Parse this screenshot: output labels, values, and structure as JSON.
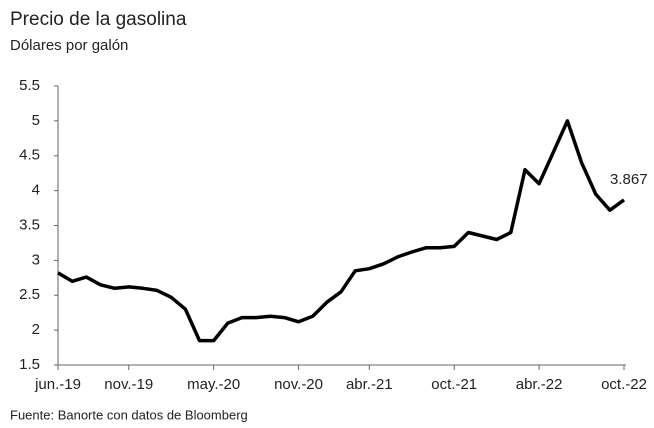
{
  "chart_data": {
    "type": "line",
    "title": "Precio de la gasolina",
    "subtitle": "Dólares por galón",
    "source": "Fuente: Banorte con datos de Bloomberg",
    "categories": [
      "jun.-19",
      null,
      null,
      null,
      null,
      "nov.-19",
      null,
      null,
      null,
      null,
      null,
      "may.-20",
      null,
      null,
      null,
      null,
      null,
      "nov.-20",
      null,
      null,
      null,
      null,
      "abr.-21",
      null,
      null,
      null,
      null,
      null,
      "oct.-21",
      null,
      null,
      null,
      null,
      null,
      "abr.-22",
      null,
      null,
      null,
      null,
      null,
      "oct.-22"
    ],
    "values": [
      2.82,
      2.7,
      2.76,
      2.65,
      2.6,
      2.62,
      2.6,
      2.57,
      2.47,
      2.3,
      1.85,
      1.85,
      2.1,
      2.18,
      2.18,
      2.2,
      2.18,
      2.12,
      2.2,
      2.4,
      2.55,
      2.85,
      2.88,
      2.95,
      3.05,
      3.12,
      3.18,
      3.18,
      3.2,
      3.4,
      3.35,
      3.3,
      3.4,
      4.3,
      4.1,
      4.55,
      5.0,
      4.4,
      3.95,
      3.72,
      3.867
    ],
    "color": "#000000",
    "ylim": [
      1.5,
      5.5
    ],
    "yticks": [
      1.5,
      2.0,
      2.5,
      3.0,
      3.5,
      4.0,
      4.5,
      5.0,
      5.5
    ]
  }
}
